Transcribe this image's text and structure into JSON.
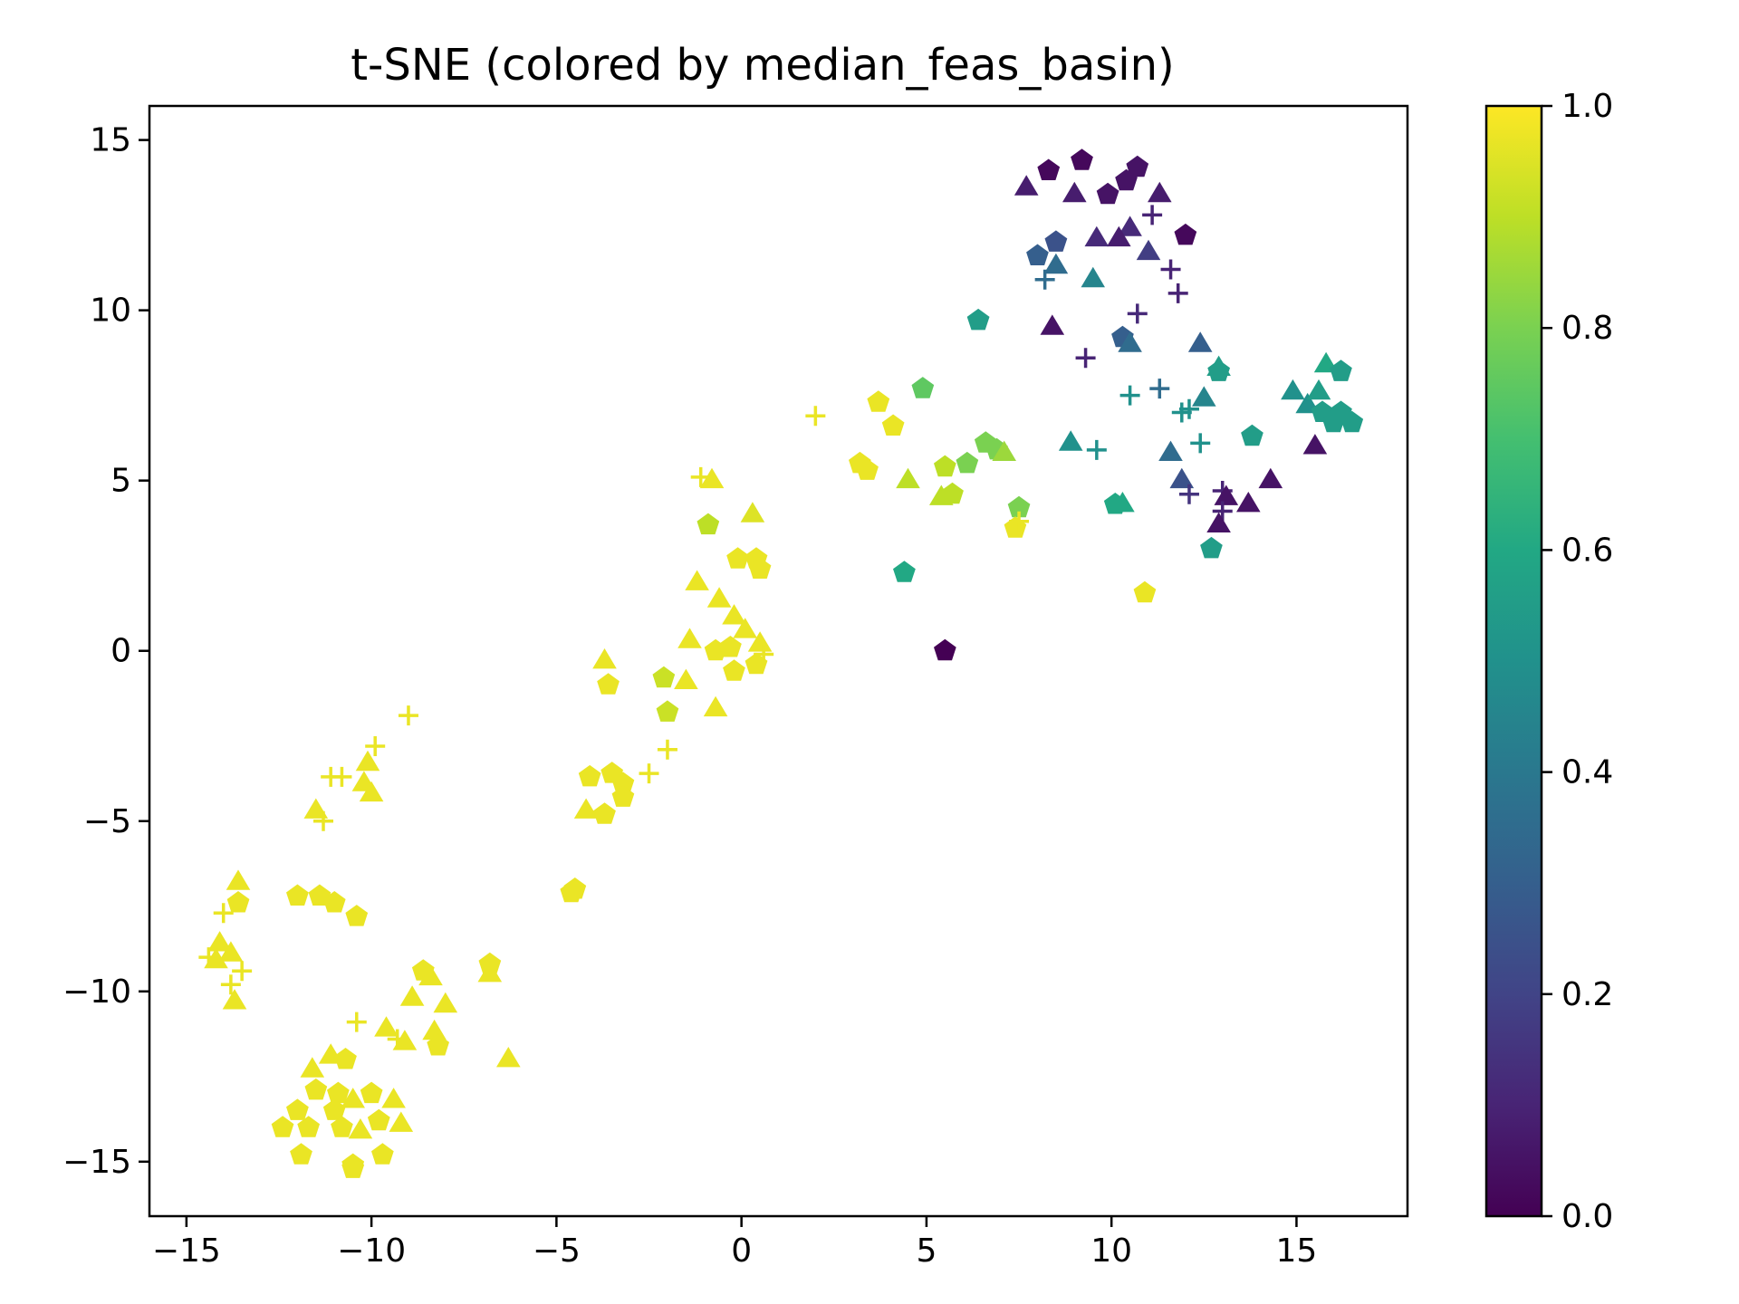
{
  "chart_data": {
    "type": "scatter",
    "title": "t-SNE (colored by median_feas_basin)",
    "xlabel": "",
    "ylabel": "",
    "xlim": [
      -16,
      18
    ],
    "ylim": [
      -16.6,
      16
    ],
    "x_ticks": [
      -15,
      -10,
      -5,
      0,
      5,
      10,
      15
    ],
    "y_ticks": [
      -15,
      -10,
      -5,
      0,
      5,
      10,
      15
    ],
    "x_tick_labels": [
      "−15",
      "−10",
      "−5",
      "0",
      "5",
      "10",
      "15"
    ],
    "y_tick_labels": [
      "−15",
      "−10",
      "−5",
      "0",
      "5",
      "10",
      "15"
    ],
    "grid": false,
    "colorbar": {
      "label": "",
      "range": [
        0.0,
        1.0
      ],
      "ticks": [
        0.0,
        0.2,
        0.4,
        0.6,
        0.8,
        1.0
      ],
      "tick_labels": [
        "0.0",
        "0.2",
        "0.4",
        "0.6",
        "0.8",
        "1.0"
      ],
      "colormap": "viridis"
    },
    "marker_shapes": [
      "pentagon",
      "triangle",
      "plus"
    ],
    "points": [
      {
        "x": 8.3,
        "y": 14.1,
        "c": 0.02,
        "m": "pentagon"
      },
      {
        "x": 9.2,
        "y": 14.4,
        "c": 0.02,
        "m": "pentagon"
      },
      {
        "x": 10.7,
        "y": 14.2,
        "c": 0.05,
        "m": "pentagon"
      },
      {
        "x": 10.4,
        "y": 13.8,
        "c": 0.05,
        "m": "pentagon"
      },
      {
        "x": 9.9,
        "y": 13.4,
        "c": 0.05,
        "m": "pentagon"
      },
      {
        "x": 7.7,
        "y": 13.6,
        "c": 0.08,
        "m": "triangle"
      },
      {
        "x": 9.0,
        "y": 13.4,
        "c": 0.08,
        "m": "triangle"
      },
      {
        "x": 11.3,
        "y": 13.4,
        "c": 0.08,
        "m": "triangle"
      },
      {
        "x": 11.1,
        "y": 12.8,
        "c": 0.1,
        "m": "plus"
      },
      {
        "x": 12.0,
        "y": 12.2,
        "c": 0.02,
        "m": "pentagon"
      },
      {
        "x": 10.5,
        "y": 12.4,
        "c": 0.12,
        "m": "triangle"
      },
      {
        "x": 10.2,
        "y": 12.1,
        "c": 0.08,
        "m": "triangle"
      },
      {
        "x": 9.6,
        "y": 12.1,
        "c": 0.12,
        "m": "triangle"
      },
      {
        "x": 11.0,
        "y": 11.7,
        "c": 0.18,
        "m": "triangle"
      },
      {
        "x": 8.5,
        "y": 12.0,
        "c": 0.25,
        "m": "pentagon"
      },
      {
        "x": 8.0,
        "y": 11.6,
        "c": 0.3,
        "m": "pentagon"
      },
      {
        "x": 8.5,
        "y": 11.3,
        "c": 0.35,
        "m": "triangle"
      },
      {
        "x": 8.2,
        "y": 10.9,
        "c": 0.35,
        "m": "plus"
      },
      {
        "x": 9.5,
        "y": 10.9,
        "c": 0.45,
        "m": "triangle"
      },
      {
        "x": 11.6,
        "y": 11.2,
        "c": 0.1,
        "m": "plus"
      },
      {
        "x": 11.8,
        "y": 10.5,
        "c": 0.1,
        "m": "plus"
      },
      {
        "x": 10.7,
        "y": 9.9,
        "c": 0.12,
        "m": "plus"
      },
      {
        "x": 8.4,
        "y": 9.5,
        "c": 0.05,
        "m": "triangle"
      },
      {
        "x": 10.3,
        "y": 9.2,
        "c": 0.3,
        "m": "pentagon"
      },
      {
        "x": 10.5,
        "y": 9.0,
        "c": 0.35,
        "m": "triangle"
      },
      {
        "x": 9.3,
        "y": 8.6,
        "c": 0.1,
        "m": "plus"
      },
      {
        "x": 6.4,
        "y": 9.7,
        "c": 0.55,
        "m": "pentagon"
      },
      {
        "x": 12.4,
        "y": 9.0,
        "c": 0.3,
        "m": "triangle"
      },
      {
        "x": 12.9,
        "y": 8.3,
        "c": 0.55,
        "m": "triangle"
      },
      {
        "x": 12.9,
        "y": 8.2,
        "c": 0.55,
        "m": "pentagon"
      },
      {
        "x": 10.5,
        "y": 7.5,
        "c": 0.5,
        "m": "plus"
      },
      {
        "x": 11.3,
        "y": 7.7,
        "c": 0.35,
        "m": "plus"
      },
      {
        "x": 12.1,
        "y": 7.1,
        "c": 0.5,
        "m": "plus"
      },
      {
        "x": 12.5,
        "y": 7.4,
        "c": 0.45,
        "m": "triangle"
      },
      {
        "x": 11.9,
        "y": 7.0,
        "c": 0.5,
        "m": "plus"
      },
      {
        "x": 14.9,
        "y": 7.6,
        "c": 0.5,
        "m": "triangle"
      },
      {
        "x": 15.3,
        "y": 7.2,
        "c": 0.5,
        "m": "triangle"
      },
      {
        "x": 15.8,
        "y": 8.4,
        "c": 0.6,
        "m": "triangle"
      },
      {
        "x": 16.2,
        "y": 8.2,
        "c": 0.55,
        "m": "pentagon"
      },
      {
        "x": 15.6,
        "y": 7.6,
        "c": 0.55,
        "m": "triangle"
      },
      {
        "x": 15.7,
        "y": 7.0,
        "c": 0.55,
        "m": "pentagon"
      },
      {
        "x": 16.0,
        "y": 6.7,
        "c": 0.55,
        "m": "pentagon"
      },
      {
        "x": 16.2,
        "y": 7.0,
        "c": 0.55,
        "m": "pentagon"
      },
      {
        "x": 16.5,
        "y": 6.7,
        "c": 0.55,
        "m": "pentagon"
      },
      {
        "x": 13.8,
        "y": 6.3,
        "c": 0.55,
        "m": "pentagon"
      },
      {
        "x": 15.5,
        "y": 6.0,
        "c": 0.05,
        "m": "triangle"
      },
      {
        "x": 8.9,
        "y": 6.1,
        "c": 0.5,
        "m": "triangle"
      },
      {
        "x": 9.6,
        "y": 5.9,
        "c": 0.5,
        "m": "plus"
      },
      {
        "x": 11.6,
        "y": 5.8,
        "c": 0.35,
        "m": "triangle"
      },
      {
        "x": 12.4,
        "y": 6.1,
        "c": 0.5,
        "m": "plus"
      },
      {
        "x": 11.9,
        "y": 5.0,
        "c": 0.25,
        "m": "triangle"
      },
      {
        "x": 12.1,
        "y": 4.6,
        "c": 0.15,
        "m": "plus"
      },
      {
        "x": 13.0,
        "y": 4.7,
        "c": 0.1,
        "m": "plus"
      },
      {
        "x": 13.1,
        "y": 4.5,
        "c": 0.05,
        "m": "triangle"
      },
      {
        "x": 13.0,
        "y": 4.1,
        "c": 0.1,
        "m": "plus"
      },
      {
        "x": 12.9,
        "y": 3.7,
        "c": 0.05,
        "m": "triangle"
      },
      {
        "x": 13.7,
        "y": 4.3,
        "c": 0.05,
        "m": "triangle"
      },
      {
        "x": 14.3,
        "y": 5.0,
        "c": 0.05,
        "m": "triangle"
      },
      {
        "x": 10.1,
        "y": 4.3,
        "c": 0.6,
        "m": "pentagon"
      },
      {
        "x": 10.3,
        "y": 4.3,
        "c": 0.6,
        "m": "triangle"
      },
      {
        "x": 12.7,
        "y": 3.0,
        "c": 0.55,
        "m": "pentagon"
      },
      {
        "x": 10.9,
        "y": 1.7,
        "c": 0.97,
        "m": "pentagon"
      },
      {
        "x": 4.4,
        "y": 2.3,
        "c": 0.6,
        "m": "pentagon"
      },
      {
        "x": 5.5,
        "y": 0.0,
        "c": 0.0,
        "m": "pentagon"
      },
      {
        "x": 4.9,
        "y": 7.7,
        "c": 0.75,
        "m": "pentagon"
      },
      {
        "x": 3.7,
        "y": 7.3,
        "c": 0.97,
        "m": "pentagon"
      },
      {
        "x": 4.1,
        "y": 6.6,
        "c": 0.97,
        "m": "pentagon"
      },
      {
        "x": 2.0,
        "y": 6.9,
        "c": 0.97,
        "m": "plus"
      },
      {
        "x": 3.2,
        "y": 5.5,
        "c": 0.97,
        "m": "pentagon"
      },
      {
        "x": 3.4,
        "y": 5.3,
        "c": 0.97,
        "m": "pentagon"
      },
      {
        "x": 6.1,
        "y": 5.5,
        "c": 0.8,
        "m": "pentagon"
      },
      {
        "x": 6.6,
        "y": 6.1,
        "c": 0.8,
        "m": "pentagon"
      },
      {
        "x": 6.9,
        "y": 5.9,
        "c": 0.8,
        "m": "pentagon"
      },
      {
        "x": 7.1,
        "y": 5.8,
        "c": 0.85,
        "m": "triangle"
      },
      {
        "x": 5.5,
        "y": 5.4,
        "c": 0.9,
        "m": "pentagon"
      },
      {
        "x": 4.5,
        "y": 5.0,
        "c": 0.9,
        "m": "triangle"
      },
      {
        "x": 5.4,
        "y": 4.5,
        "c": 0.9,
        "m": "triangle"
      },
      {
        "x": 5.7,
        "y": 4.6,
        "c": 0.9,
        "m": "pentagon"
      },
      {
        "x": 7.5,
        "y": 4.2,
        "c": 0.8,
        "m": "pentagon"
      },
      {
        "x": 7.4,
        "y": 3.6,
        "c": 0.97,
        "m": "pentagon"
      },
      {
        "x": 7.5,
        "y": 3.8,
        "c": 0.97,
        "m": "plus"
      },
      {
        "x": -1.1,
        "y": 5.1,
        "c": 0.97,
        "m": "plus"
      },
      {
        "x": -0.8,
        "y": 5.0,
        "c": 0.97,
        "m": "triangle"
      },
      {
        "x": -0.9,
        "y": 3.7,
        "c": 0.9,
        "m": "pentagon"
      },
      {
        "x": 0.3,
        "y": 4.0,
        "c": 0.95,
        "m": "triangle"
      },
      {
        "x": -0.1,
        "y": 2.7,
        "c": 0.97,
        "m": "pentagon"
      },
      {
        "x": 0.4,
        "y": 2.7,
        "c": 0.97,
        "m": "pentagon"
      },
      {
        "x": 0.5,
        "y": 2.4,
        "c": 0.97,
        "m": "pentagon"
      },
      {
        "x": -1.2,
        "y": 2.0,
        "c": 0.97,
        "m": "triangle"
      },
      {
        "x": -0.6,
        "y": 1.5,
        "c": 0.97,
        "m": "triangle"
      },
      {
        "x": -0.2,
        "y": 1.0,
        "c": 0.97,
        "m": "triangle"
      },
      {
        "x": 0.1,
        "y": 0.6,
        "c": 0.97,
        "m": "triangle"
      },
      {
        "x": -1.4,
        "y": 0.3,
        "c": 0.97,
        "m": "triangle"
      },
      {
        "x": -0.7,
        "y": 0.0,
        "c": 0.97,
        "m": "pentagon"
      },
      {
        "x": -0.3,
        "y": 0.1,
        "c": 0.97,
        "m": "pentagon"
      },
      {
        "x": 0.5,
        "y": 0.2,
        "c": 0.97,
        "m": "triangle"
      },
      {
        "x": 0.6,
        "y": -0.1,
        "c": 0.97,
        "m": "plus"
      },
      {
        "x": 0.4,
        "y": -0.4,
        "c": 0.97,
        "m": "pentagon"
      },
      {
        "x": -0.2,
        "y": -0.6,
        "c": 0.97,
        "m": "pentagon"
      },
      {
        "x": -1.5,
        "y": -0.9,
        "c": 0.97,
        "m": "triangle"
      },
      {
        "x": -3.7,
        "y": -0.3,
        "c": 0.97,
        "m": "triangle"
      },
      {
        "x": -3.6,
        "y": -1.0,
        "c": 0.97,
        "m": "pentagon"
      },
      {
        "x": -2.1,
        "y": -0.8,
        "c": 0.92,
        "m": "pentagon"
      },
      {
        "x": -2.0,
        "y": -1.8,
        "c": 0.92,
        "m": "pentagon"
      },
      {
        "x": -0.7,
        "y": -1.7,
        "c": 0.97,
        "m": "triangle"
      },
      {
        "x": -2.0,
        "y": -2.9,
        "c": 0.97,
        "m": "plus"
      },
      {
        "x": -2.5,
        "y": -3.6,
        "c": 0.97,
        "m": "plus"
      },
      {
        "x": -4.1,
        "y": -3.7,
        "c": 0.97,
        "m": "pentagon"
      },
      {
        "x": -3.5,
        "y": -3.6,
        "c": 0.97,
        "m": "pentagon"
      },
      {
        "x": -3.2,
        "y": -3.9,
        "c": 0.97,
        "m": "pentagon"
      },
      {
        "x": -3.2,
        "y": -4.3,
        "c": 0.97,
        "m": "pentagon"
      },
      {
        "x": -4.2,
        "y": -4.7,
        "c": 0.97,
        "m": "triangle"
      },
      {
        "x": -3.7,
        "y": -4.8,
        "c": 0.97,
        "m": "pentagon"
      },
      {
        "x": -4.6,
        "y": -7.1,
        "c": 0.97,
        "m": "pentagon"
      },
      {
        "x": -4.5,
        "y": -7.0,
        "c": 0.97,
        "m": "pentagon"
      },
      {
        "x": -9.0,
        "y": -1.9,
        "c": 0.97,
        "m": "plus"
      },
      {
        "x": -9.9,
        "y": -2.8,
        "c": 0.97,
        "m": "plus"
      },
      {
        "x": -10.1,
        "y": -3.3,
        "c": 0.97,
        "m": "triangle"
      },
      {
        "x": -11.1,
        "y": -3.7,
        "c": 0.97,
        "m": "plus"
      },
      {
        "x": -10.8,
        "y": -3.7,
        "c": 0.97,
        "m": "plus"
      },
      {
        "x": -10.2,
        "y": -3.9,
        "c": 0.97,
        "m": "triangle"
      },
      {
        "x": -10.0,
        "y": -4.2,
        "c": 0.97,
        "m": "triangle"
      },
      {
        "x": -11.5,
        "y": -4.7,
        "c": 0.97,
        "m": "triangle"
      },
      {
        "x": -11.3,
        "y": -5.0,
        "c": 0.97,
        "m": "plus"
      },
      {
        "x": -12.0,
        "y": -7.2,
        "c": 0.97,
        "m": "pentagon"
      },
      {
        "x": -11.4,
        "y": -7.2,
        "c": 0.97,
        "m": "pentagon"
      },
      {
        "x": -11.0,
        "y": -7.4,
        "c": 0.97,
        "m": "pentagon"
      },
      {
        "x": -10.4,
        "y": -7.8,
        "c": 0.97,
        "m": "pentagon"
      },
      {
        "x": -13.6,
        "y": -6.8,
        "c": 0.97,
        "m": "triangle"
      },
      {
        "x": -13.6,
        "y": -7.4,
        "c": 0.97,
        "m": "pentagon"
      },
      {
        "x": -14.0,
        "y": -7.7,
        "c": 0.97,
        "m": "plus"
      },
      {
        "x": -14.1,
        "y": -8.6,
        "c": 0.97,
        "m": "triangle"
      },
      {
        "x": -13.8,
        "y": -8.9,
        "c": 0.97,
        "m": "triangle"
      },
      {
        "x": -14.4,
        "y": -9.0,
        "c": 0.97,
        "m": "plus"
      },
      {
        "x": -14.2,
        "y": -9.1,
        "c": 0.97,
        "m": "triangle"
      },
      {
        "x": -13.5,
        "y": -9.4,
        "c": 0.97,
        "m": "plus"
      },
      {
        "x": -13.8,
        "y": -9.8,
        "c": 0.97,
        "m": "plus"
      },
      {
        "x": -13.7,
        "y": -10.3,
        "c": 0.97,
        "m": "triangle"
      },
      {
        "x": -8.6,
        "y": -9.4,
        "c": 0.97,
        "m": "pentagon"
      },
      {
        "x": -8.4,
        "y": -9.6,
        "c": 0.97,
        "m": "triangle"
      },
      {
        "x": -6.8,
        "y": -9.2,
        "c": 0.97,
        "m": "pentagon"
      },
      {
        "x": -6.8,
        "y": -9.5,
        "c": 0.97,
        "m": "triangle"
      },
      {
        "x": -8.0,
        "y": -10.4,
        "c": 0.97,
        "m": "triangle"
      },
      {
        "x": -8.9,
        "y": -10.2,
        "c": 0.97,
        "m": "triangle"
      },
      {
        "x": -10.4,
        "y": -10.9,
        "c": 0.97,
        "m": "plus"
      },
      {
        "x": -9.6,
        "y": -11.1,
        "c": 0.97,
        "m": "triangle"
      },
      {
        "x": -9.3,
        "y": -11.4,
        "c": 0.97,
        "m": "plus"
      },
      {
        "x": -8.3,
        "y": -11.2,
        "c": 0.97,
        "m": "triangle"
      },
      {
        "x": -8.2,
        "y": -11.6,
        "c": 0.97,
        "m": "pentagon"
      },
      {
        "x": -9.1,
        "y": -11.5,
        "c": 0.97,
        "m": "triangle"
      },
      {
        "x": -6.3,
        "y": -12.0,
        "c": 0.97,
        "m": "triangle"
      },
      {
        "x": -11.1,
        "y": -11.9,
        "c": 0.97,
        "m": "triangle"
      },
      {
        "x": -10.7,
        "y": -12.0,
        "c": 0.97,
        "m": "pentagon"
      },
      {
        "x": -11.6,
        "y": -12.3,
        "c": 0.97,
        "m": "triangle"
      },
      {
        "x": -11.5,
        "y": -12.9,
        "c": 0.97,
        "m": "pentagon"
      },
      {
        "x": -10.9,
        "y": -13.0,
        "c": 0.97,
        "m": "pentagon"
      },
      {
        "x": -12.0,
        "y": -13.5,
        "c": 0.97,
        "m": "pentagon"
      },
      {
        "x": -11.0,
        "y": -13.5,
        "c": 0.97,
        "m": "pentagon"
      },
      {
        "x": -10.5,
        "y": -13.2,
        "c": 0.97,
        "m": "triangle"
      },
      {
        "x": -10.0,
        "y": -13.0,
        "c": 0.97,
        "m": "pentagon"
      },
      {
        "x": -9.4,
        "y": -13.2,
        "c": 0.97,
        "m": "triangle"
      },
      {
        "x": -12.4,
        "y": -14.0,
        "c": 0.97,
        "m": "pentagon"
      },
      {
        "x": -11.7,
        "y": -14.0,
        "c": 0.97,
        "m": "pentagon"
      },
      {
        "x": -10.8,
        "y": -14.0,
        "c": 0.97,
        "m": "pentagon"
      },
      {
        "x": -10.3,
        "y": -14.1,
        "c": 0.97,
        "m": "triangle"
      },
      {
        "x": -9.8,
        "y": -13.8,
        "c": 0.97,
        "m": "pentagon"
      },
      {
        "x": -9.2,
        "y": -13.9,
        "c": 0.97,
        "m": "triangle"
      },
      {
        "x": -11.9,
        "y": -14.8,
        "c": 0.97,
        "m": "pentagon"
      },
      {
        "x": -10.5,
        "y": -15.1,
        "c": 0.97,
        "m": "pentagon"
      },
      {
        "x": -10.5,
        "y": -15.2,
        "c": 0.97,
        "m": "pentagon"
      },
      {
        "x": -9.7,
        "y": -14.8,
        "c": 0.97,
        "m": "pentagon"
      }
    ]
  }
}
